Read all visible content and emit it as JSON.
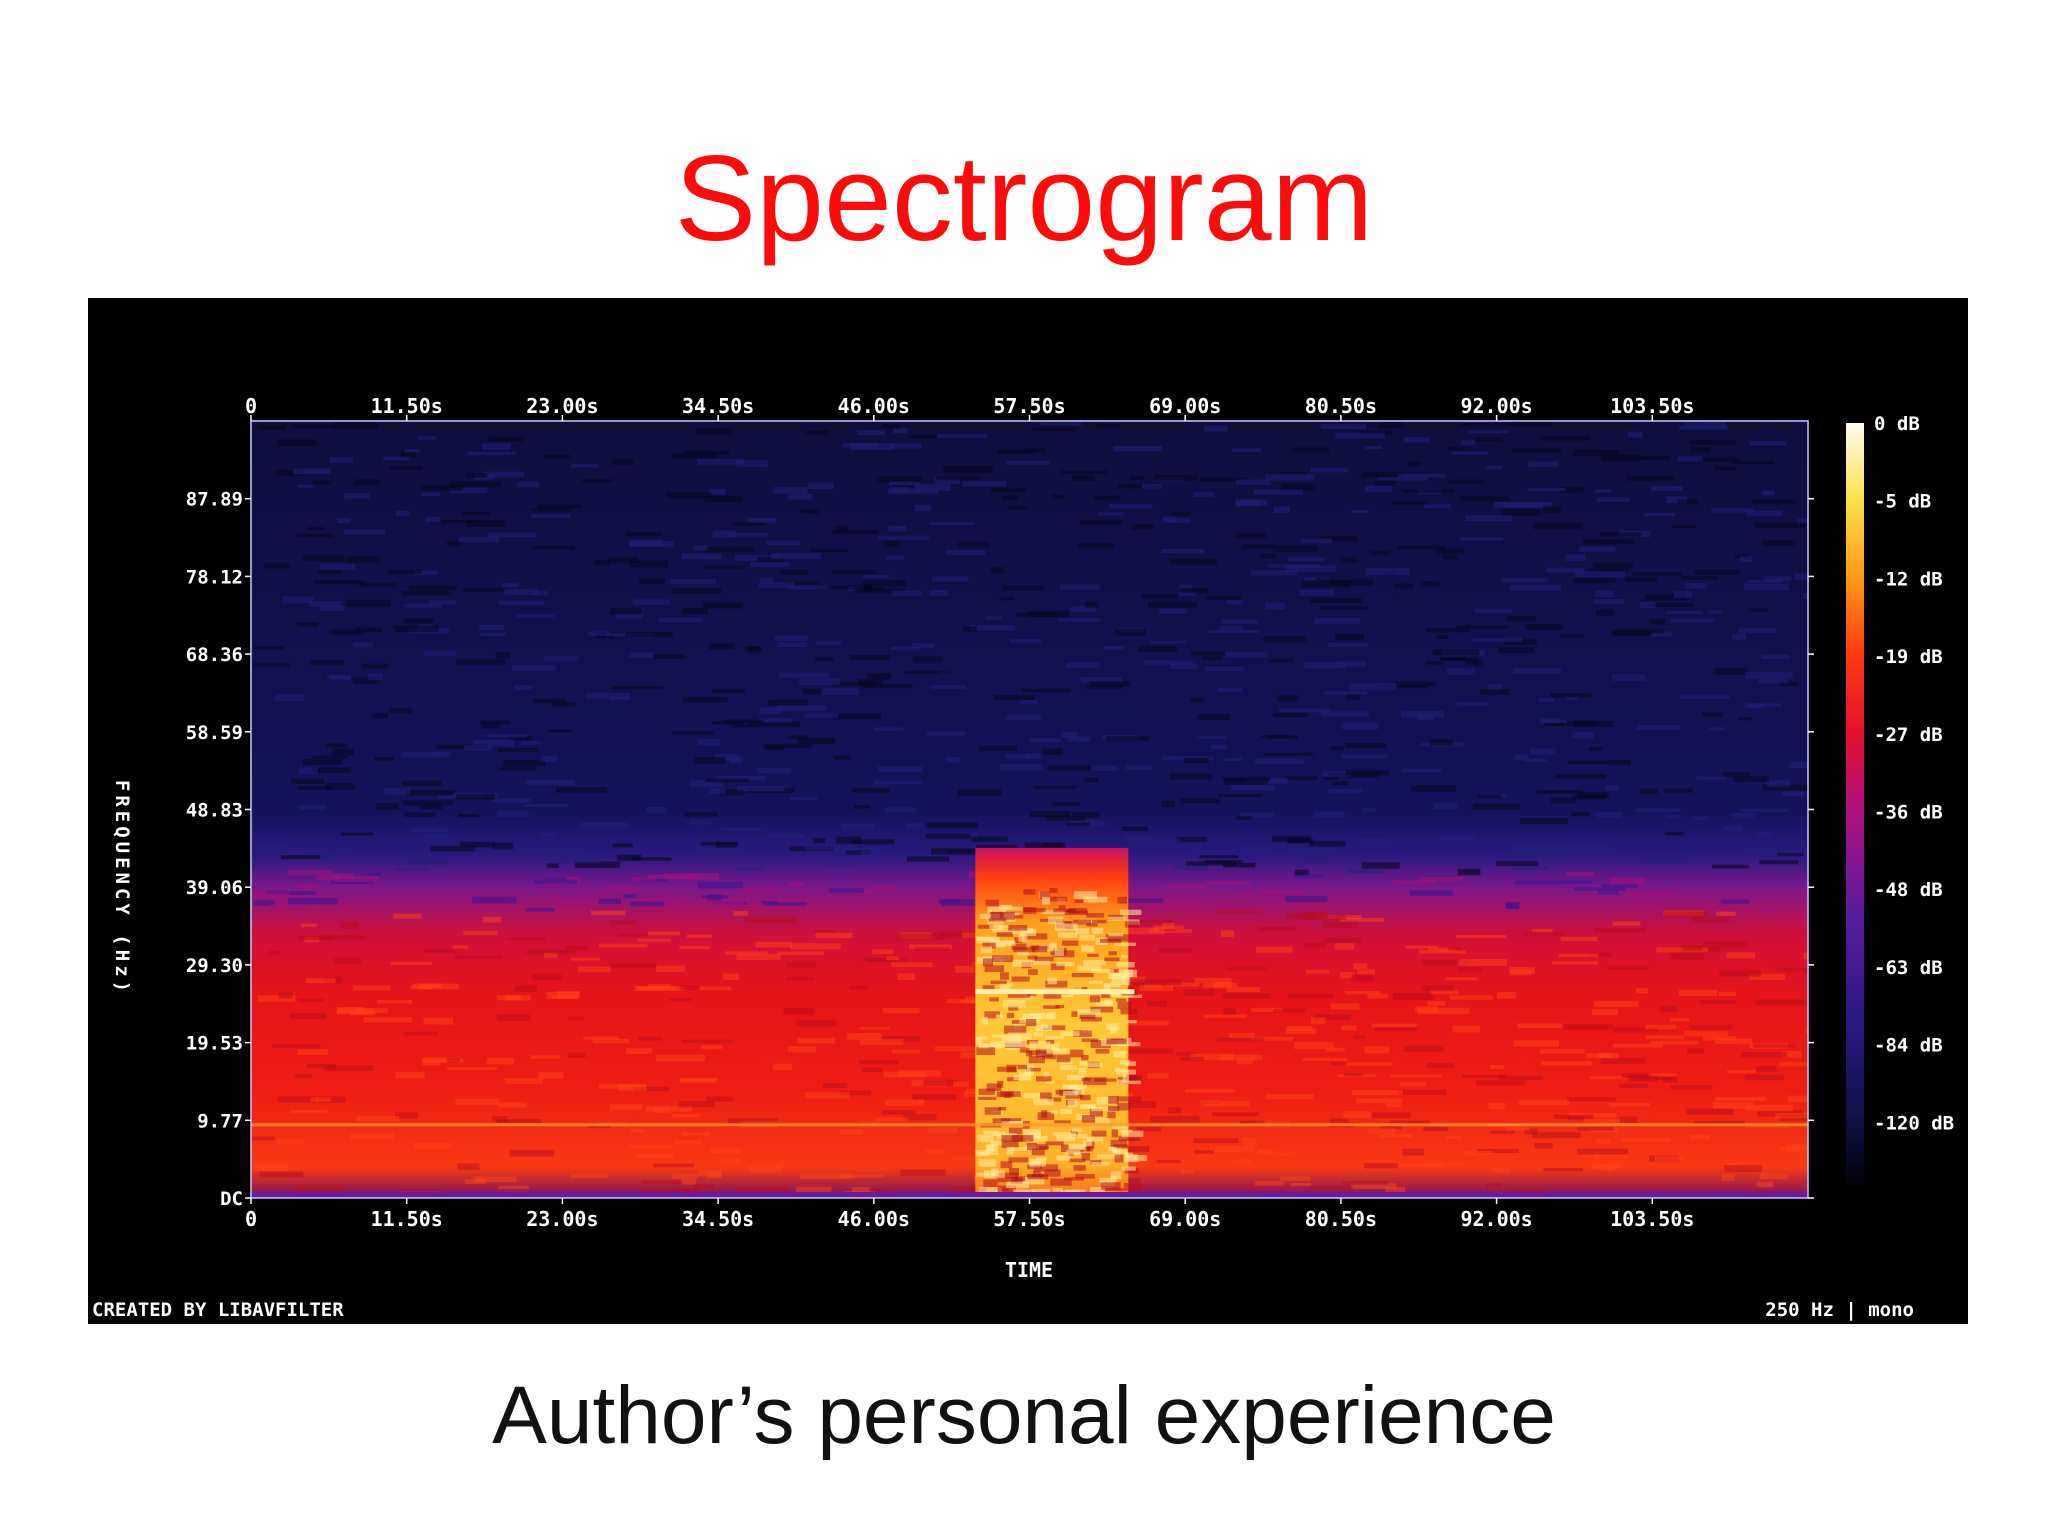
{
  "slide": {
    "title": "Spectrogram",
    "caption": "Author’s personal experience",
    "title_color": "#ff0a0a"
  },
  "chart_data": {
    "type": "heatmap",
    "x_ticks": [
      "0",
      "11.50s",
      "23.00s",
      "34.50s",
      "46.00s",
      "57.50s",
      "69.00s",
      "80.50s",
      "92.00s",
      "103.50s"
    ],
    "y_ticks": [
      "DC",
      "9.77",
      "19.53",
      "29.30",
      "39.06",
      "48.83",
      "58.59",
      "68.36",
      "78.12",
      "87.89"
    ],
    "xlabel": "TIME",
    "ylabel": "FREQUENCY (Hz)",
    "colorbar_ticks": [
      "0 dB",
      "-5 dB",
      "-12 dB",
      "-19 dB",
      "-27 dB",
      "-36 dB",
      "-48 dB",
      "-63 dB",
      "-84 dB",
      "-120 dB"
    ],
    "footer_left": "CREATED BY LIBAVFILTER",
    "footer_right": "250 Hz | mono",
    "xlim_s": [
      0,
      115
    ],
    "ylim_hz": [
      0,
      97.66
    ],
    "noise_floor_boundary_hz": 40,
    "burst": {
      "start_s": 53.5,
      "end_s": 64.8,
      "top_hz": 44
    },
    "burst_line_hz": 26,
    "low_line_hz": 9.2,
    "colormap": [
      "#000000",
      "#1a1660",
      "#5a1a9e",
      "#c01088",
      "#ff1a1a",
      "#ff7a14",
      "#ffd23c",
      "#fffbe0"
    ]
  }
}
